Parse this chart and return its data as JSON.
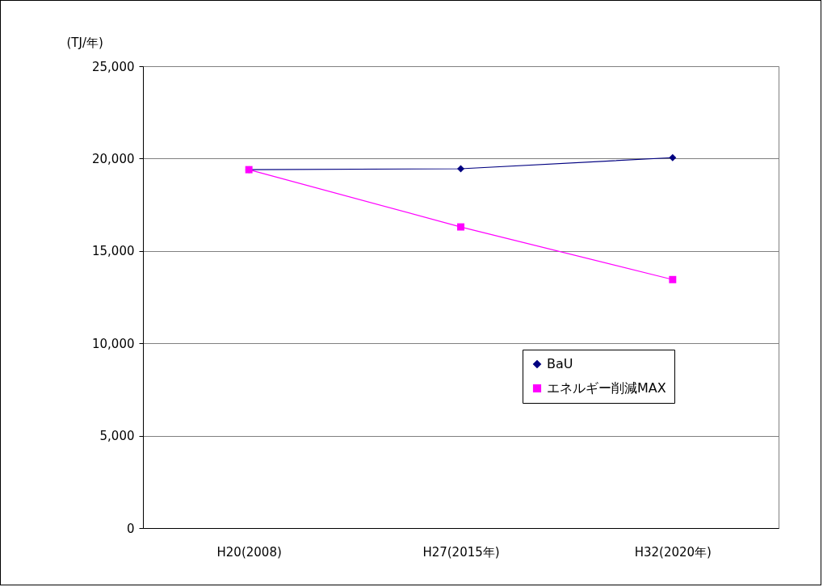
{
  "chart_data": {
    "type": "line",
    "ylabel": "(TJ/年)",
    "categories": [
      "H20(2008)",
      "H27(2015年)",
      "H32(2020年)"
    ],
    "series": [
      {
        "name": "BaU",
        "color": "#000080",
        "marker": "diamond",
        "values": [
          19400,
          19450,
          20050
        ]
      },
      {
        "name": "エネルギー削減MAX",
        "color": "#ff00ff",
        "marker": "square",
        "values": [
          19400,
          16300,
          13450
        ]
      }
    ],
    "ylim": [
      0,
      25000
    ],
    "yticks": [
      {
        "value": 0,
        "label": "0"
      },
      {
        "value": 5000,
        "label": "5,000"
      },
      {
        "value": 10000,
        "label": "10,000"
      },
      {
        "value": 15000,
        "label": "15,000"
      },
      {
        "value": 20000,
        "label": "20,000"
      },
      {
        "value": 25000,
        "label": "25,000"
      }
    ],
    "grid": "y",
    "legend": "bottom right"
  }
}
